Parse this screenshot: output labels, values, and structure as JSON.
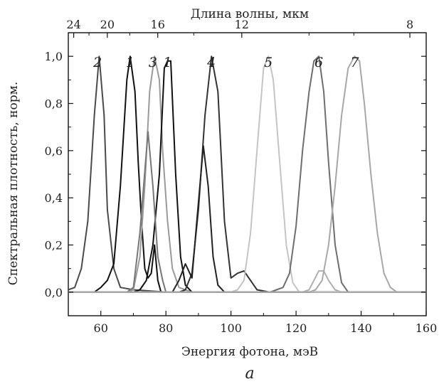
{
  "chart_data": {
    "type": "line",
    "xlabel": "Энергия фотона, мэВ",
    "ylabel": "Спектральная плотность, норм.",
    "top_xlabel": "Длина волны, мкм",
    "panel_label": "a",
    "xlim": [
      50,
      160
    ],
    "ylim": [
      -0.1,
      1.1
    ],
    "x_ticks": [
      60,
      80,
      100,
      120,
      140,
      160
    ],
    "x_tick_labels": [
      "60",
      "80",
      "100",
      "120",
      "140",
      "160"
    ],
    "y_ticks": [
      0.0,
      0.2,
      0.4,
      0.6,
      0.8,
      1.0
    ],
    "y_tick_labels": [
      "0,0",
      "0,2",
      "0,4",
      "0,6",
      "0,8",
      "1,0"
    ],
    "top_ticks": [
      24,
      20,
      16,
      12,
      8
    ],
    "top_tick_labels": [
      "24",
      "20",
      "16",
      "12",
      "8"
    ],
    "grid": false,
    "series": [
      {
        "name": "2",
        "color": "#4a4a4a",
        "peak_x": 59.5,
        "label_x": 59,
        "points": [
          [
            50,
            0.01
          ],
          [
            52,
            0.02
          ],
          [
            54,
            0.1
          ],
          [
            56,
            0.3
          ],
          [
            58,
            0.75
          ],
          [
            59.5,
            1.0
          ],
          [
            61,
            0.75
          ],
          [
            62,
            0.35
          ],
          [
            64,
            0.1
          ],
          [
            66,
            0.02
          ],
          [
            70,
            0.01
          ],
          [
            80,
            0.0
          ],
          [
            160,
            0.0
          ]
        ]
      },
      {
        "name": "1",
        "color": "#111111",
        "peak_x": 69,
        "label_x": 69,
        "points": [
          [
            50,
            0.0
          ],
          [
            58,
            0.0
          ],
          [
            60,
            0.02
          ],
          [
            62,
            0.05
          ],
          [
            64,
            0.12
          ],
          [
            66,
            0.45
          ],
          [
            68,
            0.9
          ],
          [
            69,
            1.0
          ],
          [
            70.5,
            0.85
          ],
          [
            71.5,
            0.55
          ],
          [
            72.5,
            0.3
          ],
          [
            73.5,
            0.1
          ],
          [
            74.5,
            0.06
          ],
          [
            75.5,
            0.08
          ],
          [
            76.5,
            0.2
          ],
          [
            77.5,
            0.05
          ],
          [
            78.5,
            0.0
          ],
          [
            80,
            0.0
          ],
          [
            160,
            0.0
          ]
        ]
      },
      {
        "name": "3",
        "color": "#9a9a9a",
        "peak_x": 76.5,
        "label_x": 76,
        "points": [
          [
            50,
            0.0
          ],
          [
            68,
            0.0
          ],
          [
            70,
            0.01
          ],
          [
            72,
            0.15
          ],
          [
            73.5,
            0.45
          ],
          [
            75,
            0.85
          ],
          [
            76.5,
            1.0
          ],
          [
            78,
            0.9
          ],
          [
            79,
            0.6
          ],
          [
            80.5,
            0.3
          ],
          [
            82,
            0.1
          ],
          [
            84,
            0.02
          ],
          [
            88,
            0.0
          ],
          [
            160,
            0.0
          ]
        ]
      },
      {
        "name": "1",
        "color": "#111111",
        "peak_x": 80.5,
        "label_x": 80.5,
        "points": [
          [
            50,
            0.0
          ],
          [
            70,
            0.0
          ],
          [
            72,
            0.01
          ],
          [
            74,
            0.05
          ],
          [
            76,
            0.2
          ],
          [
            78,
            0.5
          ],
          [
            79.5,
            0.95
          ],
          [
            80.5,
            0.98
          ],
          [
            81.5,
            0.98
          ],
          [
            83,
            0.5
          ],
          [
            84.5,
            0.15
          ],
          [
            86,
            0.03
          ],
          [
            88,
            0.0
          ],
          [
            160,
            0.0
          ]
        ]
      },
      {
        "name": "4",
        "color": "#333333",
        "peak_x": 94,
        "label_x": 94,
        "points": [
          [
            50,
            0.0
          ],
          [
            84,
            0.0
          ],
          [
            86,
            0.01
          ],
          [
            88,
            0.08
          ],
          [
            90,
            0.35
          ],
          [
            92,
            0.75
          ],
          [
            94,
            1.0
          ],
          [
            96,
            0.85
          ],
          [
            98,
            0.3
          ],
          [
            100,
            0.06
          ],
          [
            102,
            0.08
          ],
          [
            104,
            0.09
          ],
          [
            106,
            0.05
          ],
          [
            108,
            0.01
          ],
          [
            112,
            0.0
          ],
          [
            160,
            0.0
          ]
        ]
      },
      {
        "name": "",
        "color": "#222222",
        "peak_x": 91.5,
        "label_x": null,
        "points": [
          [
            50,
            0.0
          ],
          [
            82,
            0.0
          ],
          [
            84,
            0.05
          ],
          [
            86,
            0.12
          ],
          [
            88,
            0.06
          ],
          [
            89.5,
            0.3
          ],
          [
            91.5,
            0.62
          ],
          [
            93,
            0.45
          ],
          [
            94.5,
            0.15
          ],
          [
            96,
            0.03
          ],
          [
            98,
            0.0
          ],
          [
            160,
            0.0
          ]
        ]
      },
      {
        "name": "",
        "color": "#777777",
        "peak_x": 74.5,
        "label_x": null,
        "points": [
          [
            50,
            0.0
          ],
          [
            68,
            0.0
          ],
          [
            70,
            0.02
          ],
          [
            72,
            0.25
          ],
          [
            74.5,
            0.68
          ],
          [
            76,
            0.45
          ],
          [
            77.5,
            0.15
          ],
          [
            79,
            0.05
          ],
          [
            80,
            0.0
          ],
          [
            160,
            0.0
          ]
        ]
      },
      {
        "name": "5",
        "color": "#c4c4c4",
        "peak_x": 111.5,
        "label_x": 111.5,
        "points": [
          [
            50,
            0.0
          ],
          [
            100,
            0.0
          ],
          [
            102,
            0.01
          ],
          [
            104,
            0.05
          ],
          [
            106,
            0.25
          ],
          [
            108,
            0.6
          ],
          [
            110,
            0.95
          ],
          [
            111.5,
            1.0
          ],
          [
            113,
            0.9
          ],
          [
            115,
            0.55
          ],
          [
            117,
            0.2
          ],
          [
            119,
            0.04
          ],
          [
            121,
            0.0
          ],
          [
            160,
            0.0
          ]
        ]
      },
      {
        "name": "6",
        "color": "#6e6e6e",
        "peak_x": 127,
        "label_x": 127,
        "points": [
          [
            50,
            0.0
          ],
          [
            112,
            0.0
          ],
          [
            114,
            0.01
          ],
          [
            116,
            0.02
          ],
          [
            118,
            0.08
          ],
          [
            120,
            0.28
          ],
          [
            122,
            0.6
          ],
          [
            124,
            0.85
          ],
          [
            125.5,
            0.98
          ],
          [
            127,
            1.0
          ],
          [
            128.5,
            0.85
          ],
          [
            130,
            0.55
          ],
          [
            132,
            0.2
          ],
          [
            134,
            0.04
          ],
          [
            136,
            0.0
          ],
          [
            160,
            0.0
          ]
        ]
      },
      {
        "name": "",
        "color": "#b0b0b0",
        "peak_x": 127.5,
        "label_x": null,
        "points": [
          [
            50,
            0.0
          ],
          [
            122,
            0.0
          ],
          [
            124,
            0.01
          ],
          [
            125.5,
            0.05
          ],
          [
            127,
            0.09
          ],
          [
            128.5,
            0.09
          ],
          [
            130,
            0.05
          ],
          [
            132,
            0.01
          ],
          [
            134,
            0.0
          ],
          [
            160,
            0.0
          ]
        ]
      },
      {
        "name": "7",
        "color": "#a8a8a8",
        "peak_x": 138,
        "label_x": 138,
        "points": [
          [
            50,
            0.0
          ],
          [
            124,
            0.0
          ],
          [
            126,
            0.01
          ],
          [
            128,
            0.05
          ],
          [
            130,
            0.2
          ],
          [
            132,
            0.45
          ],
          [
            134,
            0.75
          ],
          [
            136,
            0.95
          ],
          [
            138,
            1.0
          ],
          [
            139.5,
            0.98
          ],
          [
            141,
            0.8
          ],
          [
            143,
            0.5
          ],
          [
            145,
            0.25
          ],
          [
            147,
            0.08
          ],
          [
            149,
            0.02
          ],
          [
            151,
            0.0
          ],
          [
            160,
            0.0
          ]
        ]
      }
    ]
  }
}
